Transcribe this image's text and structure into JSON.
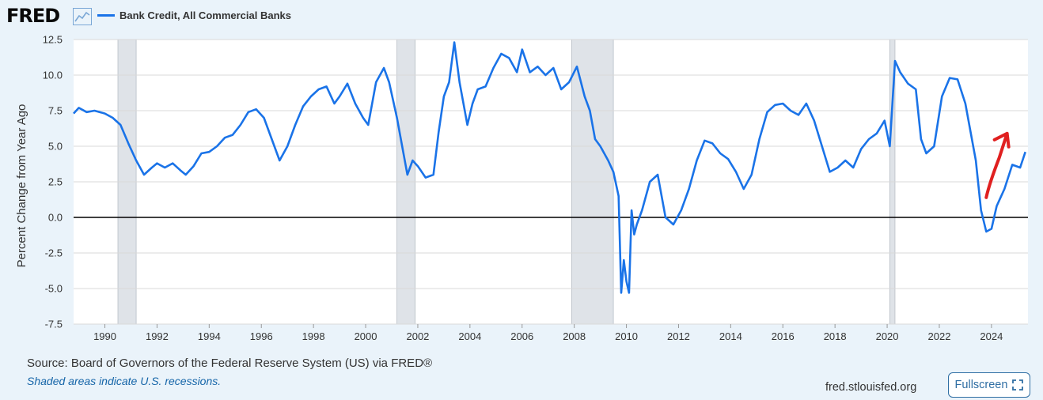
{
  "header": {
    "logo": "FRED",
    "logo_icon": "line-chart-icon",
    "legend_label": "Bank Credit, All Commercial Banks"
  },
  "footer": {
    "source": "Source: Board of Governors of the Federal Reserve System (US) via FRED®",
    "note": "Shaded areas indicate U.S. recessions.",
    "url": "fred.stlouisfed.org",
    "fullscreen_label": "Fullscreen",
    "fullscreen_icon": "expand-icon"
  },
  "colors": {
    "series": "#1a73e8",
    "recession": "#dfe3e8",
    "zero_line": "#000000",
    "annotation_arrow": "#e02020",
    "grid": "#d9d9d9"
  },
  "chart_data": {
    "type": "line",
    "title": "",
    "xlabel": "",
    "ylabel": "Percent Change from Year Ago",
    "xlim": [
      1988.8,
      2025.4
    ],
    "ylim": [
      -7.5,
      12.5
    ],
    "yticks": [
      "12.5",
      "10.0",
      "7.5",
      "5.0",
      "2.5",
      "0.0",
      "-2.5",
      "-5.0",
      "-7.5"
    ],
    "xticks": [
      "1990",
      "1992",
      "1994",
      "1996",
      "1998",
      "2000",
      "2002",
      "2004",
      "2006",
      "2008",
      "2010",
      "2012",
      "2014",
      "2016",
      "2018",
      "2020",
      "2022",
      "2024"
    ],
    "grid": true,
    "legend": "top-left",
    "recessions": [
      [
        1990.5,
        1991.2
      ],
      [
        2001.2,
        2001.9
      ],
      [
        2007.9,
        2009.5
      ],
      [
        2020.1,
        2020.3
      ]
    ],
    "annotation": "red arrow pointing up-right near 2024",
    "series": [
      {
        "name": "Bank Credit, All Commercial Banks",
        "x": [
          1988.8,
          1989.0,
          1989.3,
          1989.6,
          1990.0,
          1990.3,
          1990.6,
          1990.9,
          1991.2,
          1991.5,
          1991.8,
          1992.0,
          1992.3,
          1992.6,
          1992.9,
          1993.1,
          1993.4,
          1993.7,
          1994.0,
          1994.3,
          1994.6,
          1994.9,
          1995.2,
          1995.5,
          1995.8,
          1996.1,
          1996.4,
          1996.7,
          1997.0,
          1997.3,
          1997.6,
          1997.9,
          1998.2,
          1998.5,
          1998.8,
          1999.0,
          1999.3,
          1999.6,
          1999.9,
          2000.1,
          2000.4,
          2000.7,
          2000.9,
          2001.2,
          2001.4,
          2001.6,
          2001.8,
          2002.0,
          2002.3,
          2002.6,
          2002.8,
          2003.0,
          2003.2,
          2003.4,
          2003.6,
          2003.9,
          2004.1,
          2004.3,
          2004.6,
          2004.9,
          2005.2,
          2005.5,
          2005.8,
          2006.0,
          2006.3,
          2006.6,
          2006.9,
          2007.2,
          2007.5,
          2007.8,
          2008.1,
          2008.4,
          2008.6,
          2008.8,
          2009.0,
          2009.3,
          2009.5,
          2009.7,
          2009.8,
          2009.9,
          2010.0,
          2010.1,
          2010.2,
          2010.3,
          2010.4,
          2010.6,
          2010.9,
          2011.2,
          2011.5,
          2011.8,
          2012.1,
          2012.4,
          2012.7,
          2013.0,
          2013.3,
          2013.6,
          2013.9,
          2014.2,
          2014.5,
          2014.8,
          2015.1,
          2015.4,
          2015.7,
          2016.0,
          2016.3,
          2016.6,
          2016.9,
          2017.2,
          2017.5,
          2017.8,
          2018.1,
          2018.4,
          2018.7,
          2019.0,
          2019.3,
          2019.6,
          2019.9,
          2020.1,
          2020.3,
          2020.5,
          2020.8,
          2021.1,
          2021.3,
          2021.5,
          2021.8,
          2022.1,
          2022.4,
          2022.7,
          2023.0,
          2023.2,
          2023.4,
          2023.6,
          2023.8,
          2024.0,
          2024.2,
          2024.5,
          2024.8,
          2025.1,
          2025.3
        ],
        "values": [
          7.3,
          7.7,
          7.4,
          7.5,
          7.3,
          7.0,
          6.5,
          5.2,
          4.0,
          3.0,
          3.5,
          3.8,
          3.5,
          3.8,
          3.3,
          3.0,
          3.6,
          4.5,
          4.6,
          5.0,
          5.6,
          5.8,
          6.5,
          7.4,
          7.6,
          7.0,
          5.5,
          4.0,
          5.0,
          6.5,
          7.8,
          8.5,
          9.0,
          9.2,
          8.0,
          8.5,
          9.4,
          8.0,
          7.0,
          6.5,
          9.5,
          10.5,
          9.5,
          7.0,
          5.0,
          3.0,
          4.0,
          3.6,
          2.8,
          3.0,
          6.0,
          8.5,
          9.5,
          12.3,
          9.5,
          6.5,
          8.0,
          9.0,
          9.2,
          10.5,
          11.5,
          11.2,
          10.2,
          11.8,
          10.2,
          10.6,
          10.0,
          10.5,
          9.0,
          9.5,
          10.6,
          8.5,
          7.5,
          5.5,
          5.0,
          4.0,
          3.2,
          1.5,
          -5.3,
          -3.0,
          -4.5,
          -5.3,
          0.5,
          -1.2,
          -0.5,
          0.5,
          2.5,
          3.0,
          0.0,
          -0.5,
          0.5,
          2.0,
          4.0,
          5.4,
          5.2,
          4.5,
          4.1,
          3.2,
          2.0,
          3.0,
          5.5,
          7.4,
          7.9,
          8.0,
          7.5,
          7.2,
          8.0,
          6.8,
          5.0,
          3.2,
          3.5,
          4.0,
          3.5,
          4.8,
          5.5,
          5.9,
          6.8,
          5.0,
          11.0,
          10.2,
          9.4,
          9.0,
          5.5,
          4.5,
          5.0,
          8.5,
          9.8,
          9.7,
          8.0,
          6.0,
          4.0,
          0.5,
          -1.0,
          -0.8,
          0.8,
          2.0,
          3.7,
          3.5,
          4.6
        ]
      }
    ]
  }
}
